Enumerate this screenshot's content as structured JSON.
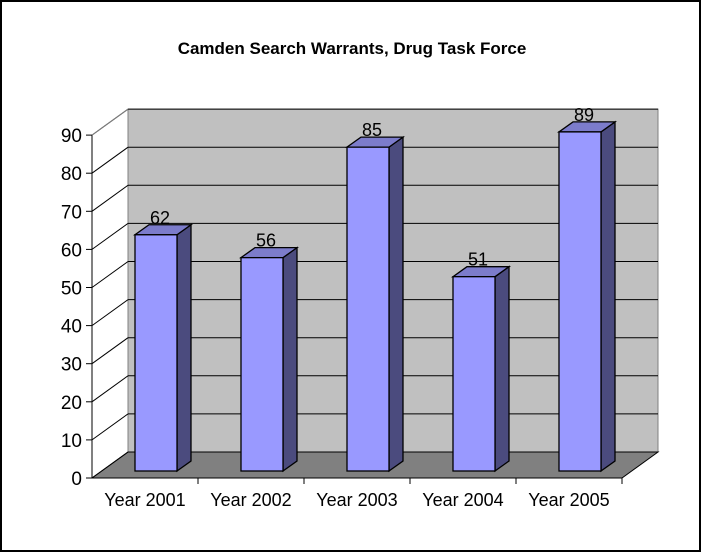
{
  "chart_data": {
    "type": "bar",
    "title": "Camden Search Warrants, Drug Task Force",
    "categories": [
      "Year 2001",
      "Year 2002",
      "Year 2003",
      "Year 2004",
      "Year 2005"
    ],
    "values": [
      62,
      56,
      85,
      51,
      89
    ],
    "ylim": [
      0,
      90
    ],
    "yticks": [
      "0",
      "10",
      "20",
      "30",
      "40",
      "50",
      "60",
      "70",
      "80",
      "90"
    ],
    "data_labels": [
      "62",
      "56",
      "85",
      "51",
      "89"
    ],
    "grid": true,
    "legend": "none",
    "style": "3d-column",
    "colors": {
      "bar_front": "#9999FF",
      "bar_side": "#4B4B7E",
      "bar_top": "#7C7CCB",
      "wall": "#C0C0C0",
      "floor": "#808080",
      "frame": "#000000"
    }
  }
}
